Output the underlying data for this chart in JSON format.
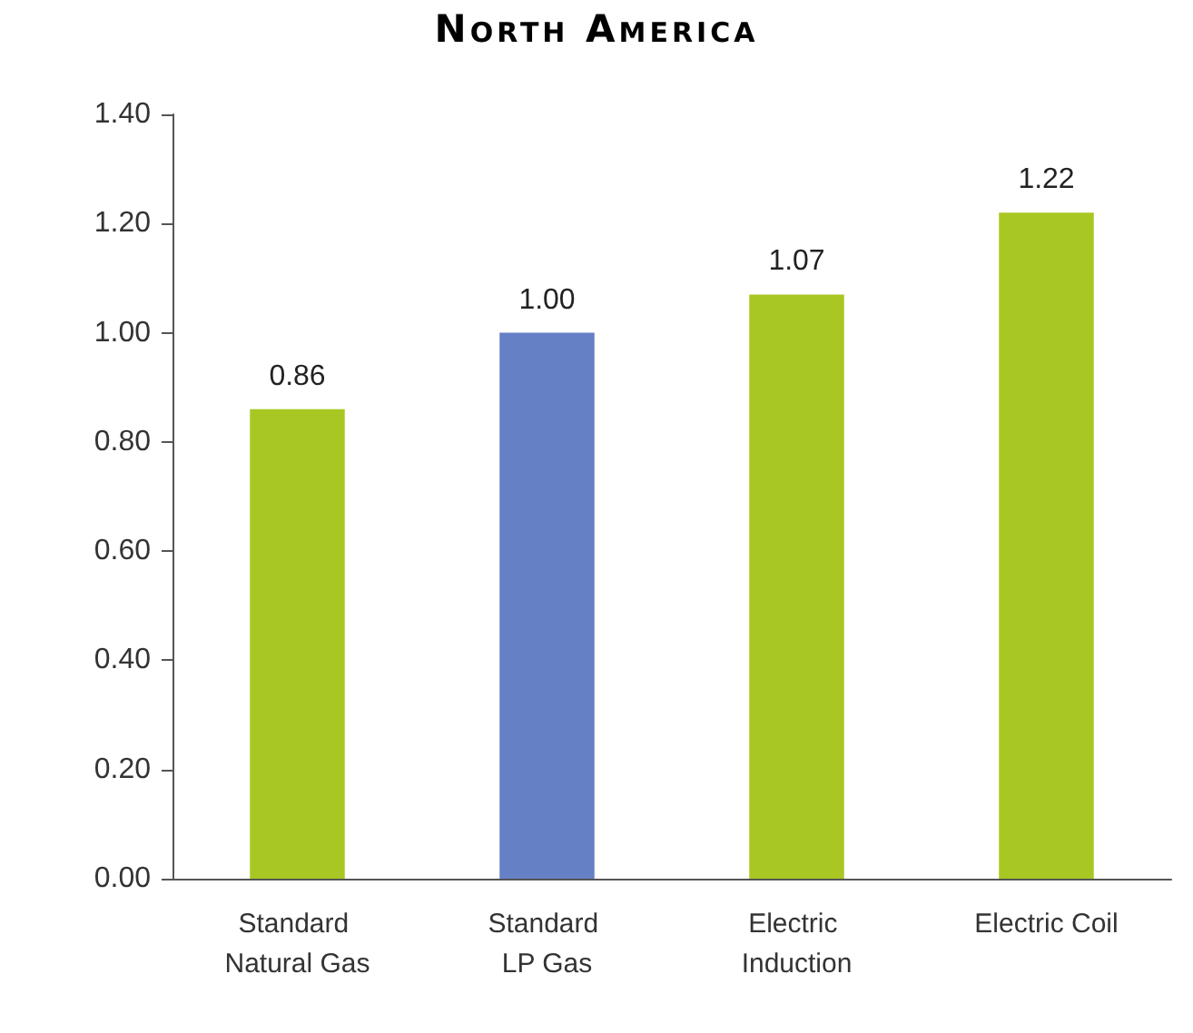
{
  "chart_data": {
    "type": "bar",
    "title": "North America",
    "categories": [
      "Standard Natural Gas",
      "Standard LP Gas",
      "Electric Induction",
      "Electric Coil"
    ],
    "values": [
      0.86,
      1.0,
      1.07,
      1.22
    ],
    "colors": [
      "#a8c723",
      "#6680c6",
      "#a8c723",
      "#a8c723"
    ],
    "value_labels": [
      "0.86",
      "1.00",
      "1.07",
      "1.22"
    ],
    "ylim": [
      0,
      1.4
    ],
    "yticks": [
      {
        "value": 0,
        "label": "0.00"
      },
      {
        "value": 0.2,
        "label": "0.20"
      },
      {
        "value": 0.4,
        "label": "0.40"
      },
      {
        "value": 0.6,
        "label": "0.60"
      },
      {
        "value": 0.8,
        "label": "0.80"
      },
      {
        "value": 1.0,
        "label": "1.00"
      },
      {
        "value": 1.2,
        "label": "1.20"
      },
      {
        "value": 1.4,
        "label": "1.40"
      }
    ],
    "grid": false
  }
}
